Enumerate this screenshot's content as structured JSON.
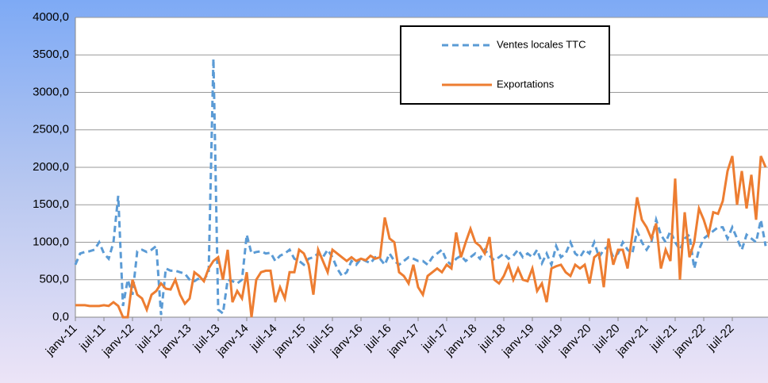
{
  "chart_data": {
    "type": "line",
    "categories": [
      "janv-11",
      null,
      null,
      null,
      null,
      null,
      "juil-11",
      null,
      null,
      null,
      null,
      null,
      "janv-12",
      null,
      null,
      null,
      null,
      null,
      "juil-12",
      null,
      null,
      null,
      null,
      null,
      "janv-13",
      null,
      null,
      null,
      null,
      null,
      "juil-13",
      null,
      null,
      null,
      null,
      null,
      "janv-14",
      null,
      null,
      null,
      null,
      null,
      "juil-14",
      null,
      null,
      null,
      null,
      null,
      "janv-15",
      null,
      null,
      null,
      null,
      null,
      "juil-15",
      null,
      null,
      null,
      null,
      null,
      "janv-16",
      null,
      null,
      null,
      null,
      null,
      "juil-16",
      null,
      null,
      null,
      null,
      null,
      "janv-17",
      null,
      null,
      null,
      null,
      null,
      "juil-17",
      null,
      null,
      null,
      null,
      null,
      "janv-18",
      null,
      null,
      null,
      null,
      null,
      "juil-18",
      null,
      null,
      null,
      null,
      null,
      "janv-19",
      null,
      null,
      null,
      null,
      null,
      "juil-19",
      null,
      null,
      null,
      null,
      null,
      "janv-20",
      null,
      null,
      null,
      null,
      null,
      "juil-20",
      null,
      null,
      null,
      null,
      null,
      "janv-21",
      null,
      null,
      null,
      null,
      null,
      "juil-21",
      null,
      null,
      null,
      null,
      null,
      "janv-22",
      null,
      null,
      null,
      null,
      null,
      "juil-22",
      null,
      null,
      null,
      null,
      null,
      null,
      null
    ],
    "series": [
      {
        "name": "Ventes locales TTC",
        "color": "#5b9bd5",
        "dashed": true,
        "values": [
          700,
          850,
          870,
          880,
          900,
          1000,
          850,
          780,
          1000,
          1620,
          150,
          500,
          300,
          880,
          900,
          870,
          900,
          950,
          30,
          650,
          620,
          620,
          600,
          580,
          500,
          480,
          520,
          500,
          600,
          3450,
          100,
          50,
          500,
          480,
          450,
          500,
          1100,
          850,
          870,
          880,
          850,
          860,
          750,
          820,
          850,
          900,
          780,
          750,
          700,
          780,
          800,
          850,
          800,
          900,
          800,
          650,
          550,
          600,
          750,
          700,
          780,
          750,
          720,
          800,
          780,
          700,
          850,
          750,
          700,
          750,
          800,
          780,
          750,
          750,
          700,
          800,
          850,
          900,
          750,
          700,
          780,
          820,
          750,
          800,
          850,
          780,
          900,
          820,
          760,
          800,
          850,
          780,
          820,
          900,
          800,
          850,
          800,
          900,
          720,
          850,
          700,
          950,
          800,
          850,
          1000,
          850,
          800,
          900,
          850,
          1000,
          800,
          900,
          950,
          800,
          850,
          1000,
          900,
          850,
          1150,
          1000,
          900,
          1000,
          1300,
          1100,
          1000,
          1150,
          1000,
          900,
          1050,
          1100,
          650,
          900,
          1050,
          1100,
          1150,
          1200,
          1200,
          1050,
          1200,
          1050,
          900,
          1100,
          1050,
          1000,
          1300,
          950
        ]
      },
      {
        "name": "Exportations",
        "color": "#ed7d31",
        "dashed": false,
        "values": [
          160,
          160,
          160,
          150,
          150,
          150,
          160,
          150,
          200,
          150,
          0,
          0,
          500,
          300,
          250,
          100,
          300,
          350,
          450,
          380,
          370,
          500,
          300,
          180,
          250,
          600,
          550,
          480,
          650,
          750,
          800,
          500,
          900,
          200,
          350,
          250,
          600,
          0,
          500,
          600,
          620,
          620,
          200,
          400,
          250,
          600,
          600,
          900,
          850,
          700,
          300,
          900,
          750,
          600,
          900,
          850,
          800,
          750,
          800,
          750,
          780,
          760,
          820,
          780,
          800,
          1330,
          1050,
          1000,
          600,
          550,
          450,
          700,
          400,
          300,
          550,
          600,
          650,
          600,
          700,
          650,
          1130,
          800,
          1000,
          1180,
          1000,
          950,
          850,
          1070,
          500,
          450,
          550,
          700,
          500,
          650,
          500,
          480,
          650,
          350,
          450,
          200,
          650,
          680,
          700,
          600,
          550,
          700,
          650,
          700,
          450,
          800,
          850,
          400,
          1050,
          700,
          900,
          900,
          650,
          1100,
          1600,
          1300,
          1200,
          1050,
          1250,
          650,
          900,
          750,
          1850,
          500,
          1400,
          800,
          1000,
          1450,
          1300,
          1100,
          1400,
          1380,
          1550,
          1950,
          2150,
          1500,
          1950,
          1450,
          1900,
          1300,
          2150,
          2000
        ]
      }
    ],
    "ylim": [
      0,
      4000
    ],
    "yticks": [
      {
        "value": 0,
        "label": "0,0"
      },
      {
        "value": 500,
        "label": "500,0"
      },
      {
        "value": 1000,
        "label": "1000,0"
      },
      {
        "value": 1500,
        "label": "1500,0"
      },
      {
        "value": 2000,
        "label": "2000,0"
      },
      {
        "value": 2500,
        "label": "2500,0"
      },
      {
        "value": 3000,
        "label": "3000,0"
      },
      {
        "value": 3500,
        "label": "3500,0"
      },
      {
        "value": 4000,
        "label": "4000,0"
      }
    ],
    "grid": true,
    "legend": "top-right"
  }
}
